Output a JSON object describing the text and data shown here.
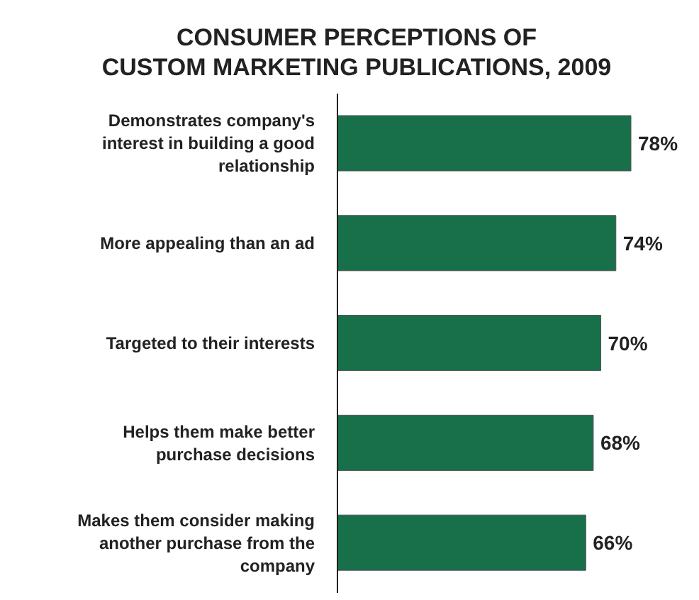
{
  "chart_data": {
    "type": "bar",
    "orientation": "horizontal",
    "title": "CONSUMER PERCEPTIONS OF\nCUSTOM MARKETING PUBLICATIONS, 2009",
    "categories": [
      "Demonstrates company's interest in building a good relationship",
      "More appealing than an ad",
      "Targeted to their interests",
      "Helps them make better purchase decisions",
      "Makes them consider making another purchase from the company"
    ],
    "values": [
      78,
      74,
      70,
      68,
      66
    ],
    "value_labels": [
      "78%",
      "74%",
      "70%",
      "68%",
      "66%"
    ],
    "color": "#17704a"
  }
}
